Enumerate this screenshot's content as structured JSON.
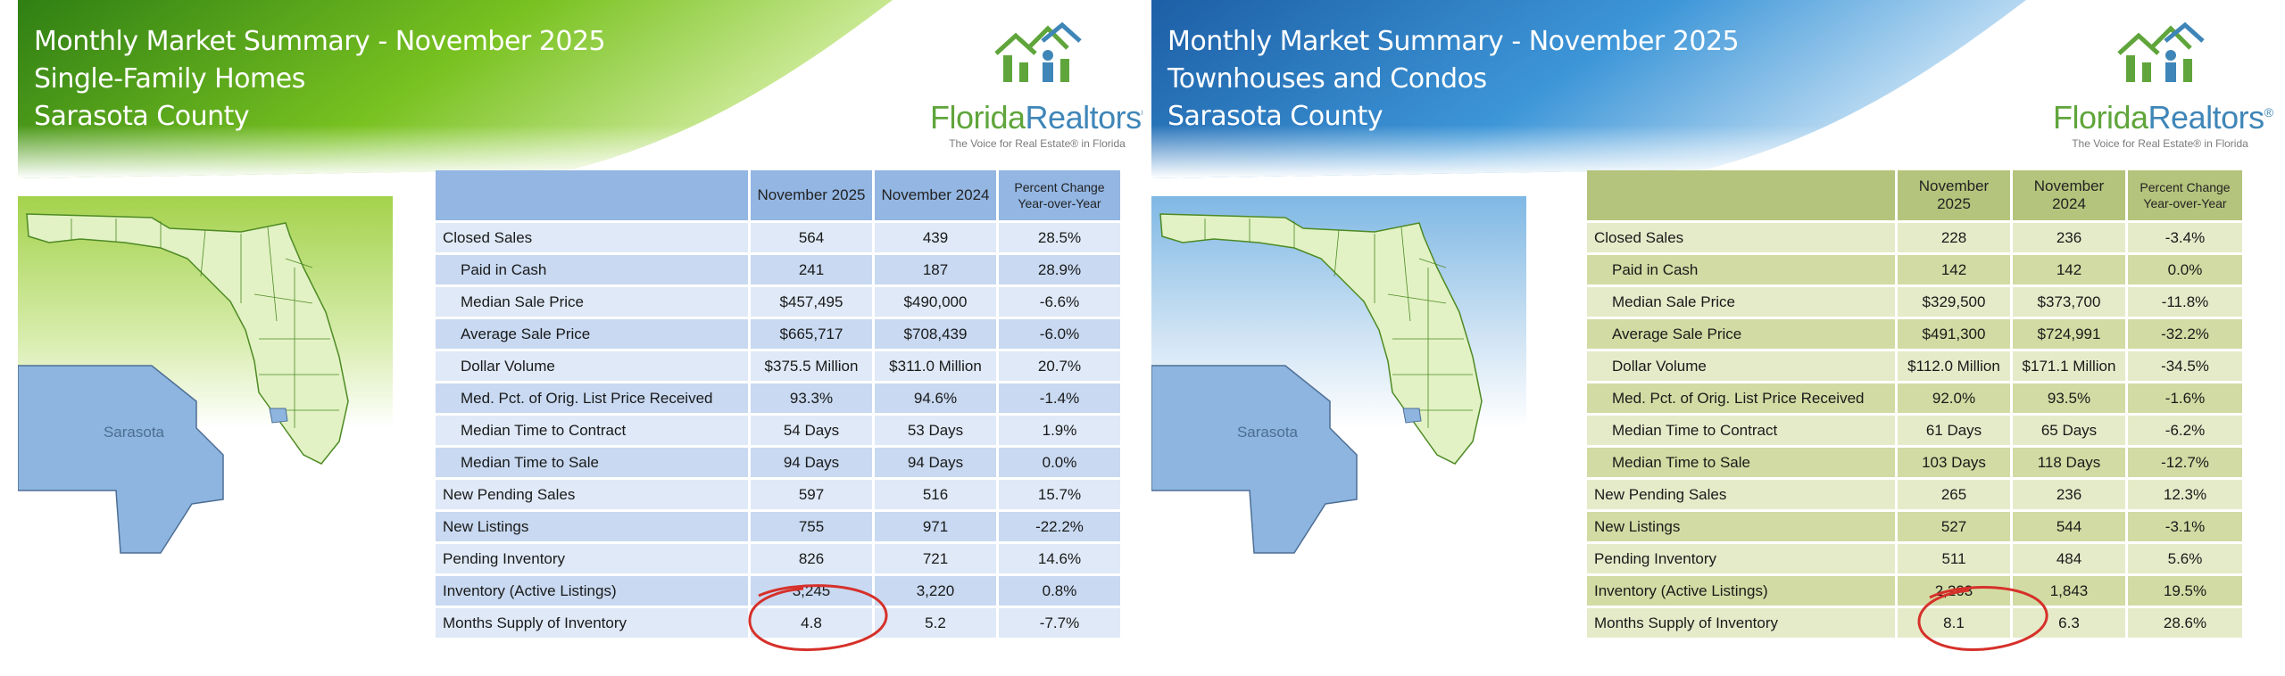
{
  "panels": [
    {
      "title_line1": "Monthly Market Summary - November 2025",
      "title_line2": "Single-Family Homes",
      "title_line3": "Sarasota County",
      "logo_text_a": "Florida",
      "logo_text_b": "Realtors",
      "logo_reg": "®",
      "tagline": "The Voice for Real Estate® in Florida",
      "map_label": "Sarasota",
      "headers": [
        "",
        "November 2025",
        "November 2024",
        "Percent Change Year-over-Year"
      ],
      "rows": [
        {
          "label": "Closed Sales",
          "v1": "564",
          "v2": "439",
          "pct": "28.5%"
        },
        {
          "label": "Paid in Cash",
          "v1": "241",
          "v2": "187",
          "pct": "28.9%"
        },
        {
          "label": "Median Sale Price",
          "v1": "$457,495",
          "v2": "$490,000",
          "pct": "-6.6%"
        },
        {
          "label": "Average Sale Price",
          "v1": "$665,717",
          "v2": "$708,439",
          "pct": "-6.0%"
        },
        {
          "label": "Dollar Volume",
          "v1": "$375.5 Million",
          "v2": "$311.0 Million",
          "pct": "20.7%"
        },
        {
          "label": "Med. Pct. of Orig. List Price Received",
          "v1": "93.3%",
          "v2": "94.6%",
          "pct": "-1.4%"
        },
        {
          "label": "Median Time to Contract",
          "v1": "54 Days",
          "v2": "53 Days",
          "pct": "1.9%"
        },
        {
          "label": "Median Time to Sale",
          "v1": "94 Days",
          "v2": "94 Days",
          "pct": "0.0%"
        },
        {
          "label": "New Pending Sales",
          "v1": "597",
          "v2": "516",
          "pct": "15.7%"
        },
        {
          "label": "New Listings",
          "v1": "755",
          "v2": "971",
          "pct": "-22.2%"
        },
        {
          "label": "Pending Inventory",
          "v1": "826",
          "v2": "721",
          "pct": "14.6%"
        },
        {
          "label": "Inventory (Active Listings)",
          "v1": "3,245",
          "v2": "3,220",
          "pct": "0.8%"
        },
        {
          "label": "Months Supply of Inventory",
          "v1": "4.8",
          "v2": "5.2",
          "pct": "-7.7%"
        }
      ],
      "colors": {
        "header_start": "#3a8d1a",
        "header_end": "#b9e15a",
        "table_header": "#93b6e3"
      }
    },
    {
      "title_line1": "Monthly Market Summary - November 2025",
      "title_line2": "Townhouses and Condos",
      "title_line3": "Sarasota County",
      "logo_text_a": "Florida",
      "logo_text_b": "Realtors",
      "logo_reg": "®",
      "tagline": "The Voice for Real Estate® in Florida",
      "map_label": "Sarasota",
      "headers": [
        "",
        "November 2025",
        "November 2024",
        "Percent Change Year-over-Year"
      ],
      "rows": [
        {
          "label": "Closed Sales",
          "v1": "228",
          "v2": "236",
          "pct": "-3.4%"
        },
        {
          "label": "Paid in Cash",
          "v1": "142",
          "v2": "142",
          "pct": "0.0%"
        },
        {
          "label": "Median Sale Price",
          "v1": "$329,500",
          "v2": "$373,700",
          "pct": "-11.8%"
        },
        {
          "label": "Average Sale Price",
          "v1": "$491,300",
          "v2": "$724,991",
          "pct": "-32.2%"
        },
        {
          "label": "Dollar Volume",
          "v1": "$112.0 Million",
          "v2": "$171.1 Million",
          "pct": "-34.5%"
        },
        {
          "label": "Med. Pct. of Orig. List Price Received",
          "v1": "92.0%",
          "v2": "93.5%",
          "pct": "-1.6%"
        },
        {
          "label": "Median Time to Contract",
          "v1": "61 Days",
          "v2": "65 Days",
          "pct": "-6.2%"
        },
        {
          "label": "Median Time to Sale",
          "v1": "103 Days",
          "v2": "118 Days",
          "pct": "-12.7%"
        },
        {
          "label": "New Pending Sales",
          "v1": "265",
          "v2": "236",
          "pct": "12.3%"
        },
        {
          "label": "New Listings",
          "v1": "527",
          "v2": "544",
          "pct": "-3.1%"
        },
        {
          "label": "Pending Inventory",
          "v1": "511",
          "v2": "484",
          "pct": "5.6%"
        },
        {
          "label": "Inventory (Active Listings)",
          "v1": "2,203",
          "v2": "1,843",
          "pct": "19.5%"
        },
        {
          "label": "Months Supply of Inventory",
          "v1": "8.1",
          "v2": "6.3",
          "pct": "28.6%"
        }
      ],
      "colors": {
        "header_start": "#1f6fb8",
        "header_end": "#8fc6ec",
        "table_header": "#b5c47c"
      }
    }
  ]
}
